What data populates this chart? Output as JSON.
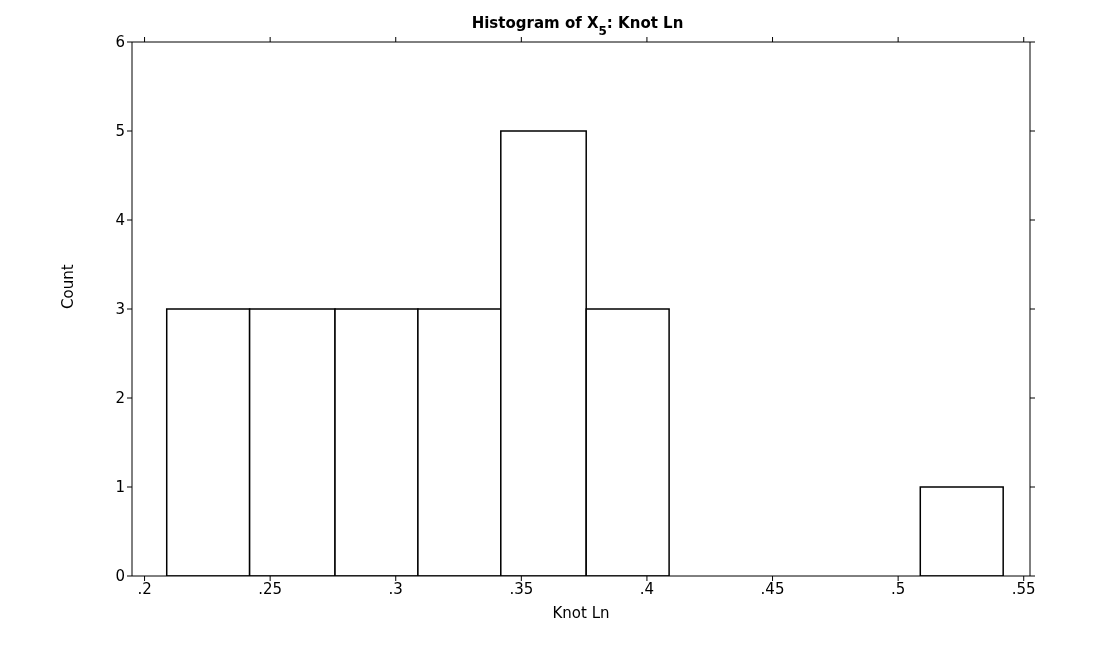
{
  "chart_data": {
    "type": "histogram",
    "title": "Histogram of X$_{5}$: Knot Ln",
    "xlabel": "Knot Ln",
    "ylabel": "Count",
    "bins": [
      0.209,
      0.242,
      0.276,
      0.309,
      0.342,
      0.376,
      0.409,
      0.509,
      0.542
    ],
    "values": [
      3,
      3,
      3,
      3,
      5,
      3,
      0,
      1
    ],
    "color": "#ffffff",
    "xlim": [
      0.195,
      0.5525
    ],
    "ylim": [
      0,
      6
    ],
    "xticks": [
      {
        "value": 0.2,
        "label": ".2"
      },
      {
        "value": 0.25,
        "label": ".25"
      },
      {
        "value": 0.3,
        "label": ".3"
      },
      {
        "value": 0.35,
        "label": ".35"
      },
      {
        "value": 0.4,
        "label": ".4"
      },
      {
        "value": 0.45,
        "label": ".45"
      },
      {
        "value": 0.5,
        "label": ".5"
      },
      {
        "value": 0.55,
        "label": ".55"
      }
    ],
    "yticks": [
      0,
      1,
      2,
      3,
      4,
      5,
      6
    ],
    "grid": false,
    "legend": false
  }
}
